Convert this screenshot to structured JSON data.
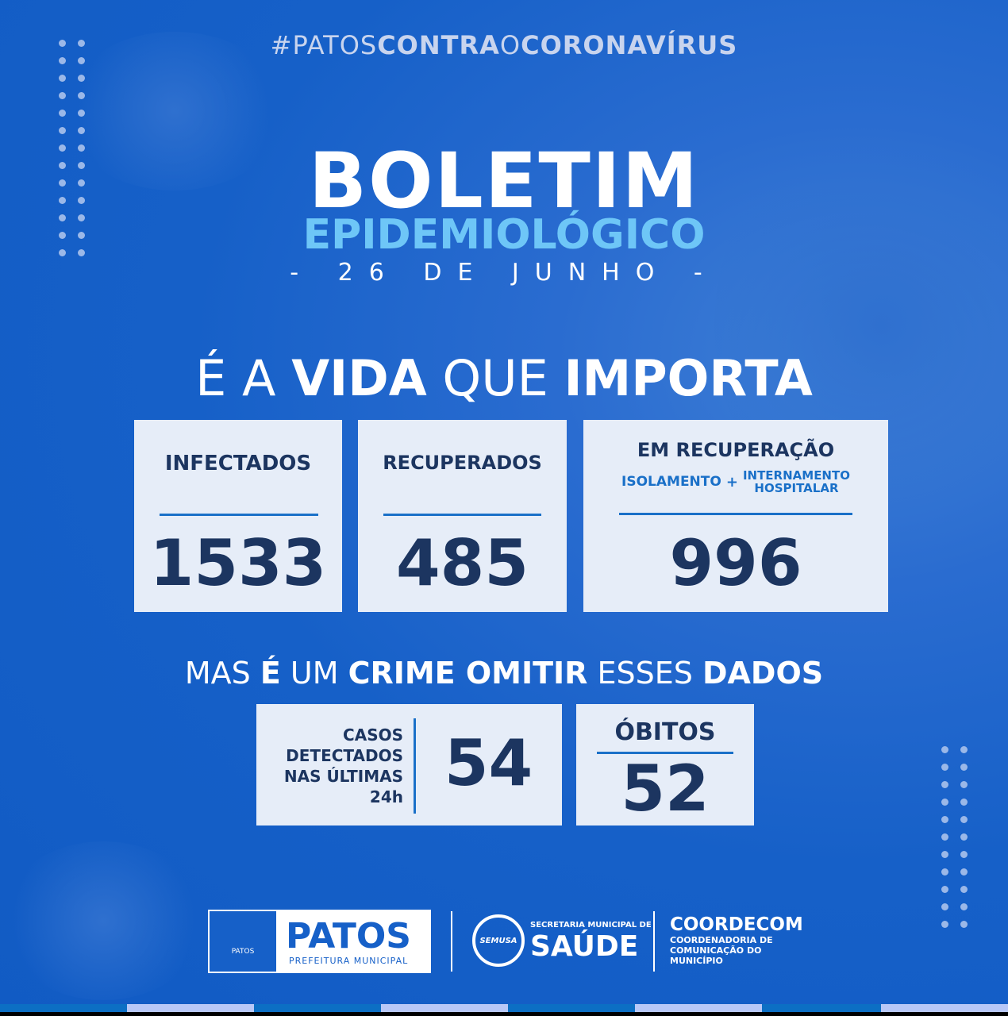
{
  "hashtag": {
    "prefix": "#PATOS",
    "bold1": "CONTRA",
    "mid": "O",
    "bold2": "CORONAVÍRUS"
  },
  "title": "BOLETIM",
  "subtitle": "EPIDEMIOLÓGICO",
  "date": "- 26 DE JUNHO -",
  "slogan": {
    "p1": "É A ",
    "b1": "VIDA",
    "p2": " QUE ",
    "b2": "IMPORTA"
  },
  "stats": {
    "infectados": {
      "label": "INFECTADOS",
      "value": "1533"
    },
    "recuperados": {
      "label": "RECUPERADOS",
      "value": "485"
    },
    "em_recuperacao": {
      "label": "EM RECUPERAÇÃO",
      "sub1": "ISOLAMENTO",
      "plus": "+",
      "sub2a": "INTERNAMENTO",
      "sub2b": "HOSPITALAR",
      "value": "996"
    }
  },
  "slogan2": {
    "p1": "MAS ",
    "b1": "É",
    "p2": " UM ",
    "b2": "CRIME OMITIR",
    "p3": " ESSES ",
    "b3": "DADOS"
  },
  "casos24h": {
    "l1": "CASOS",
    "l2": "DETECTADOS",
    "l3": "NAS ÚLTIMAS",
    "l4": "24h",
    "value": "54"
  },
  "obitos": {
    "label": "ÓBITOS",
    "value": "52"
  },
  "footer": {
    "patos": {
      "name": "PATOS",
      "sub": "PREFEITURA MUNICIPAL",
      "crest": "PATOS"
    },
    "saude": {
      "top": "SECRETARIA MUNICIPAL DE",
      "name": "SAÚDE",
      "badge": "SEMUSA"
    },
    "coordecom": {
      "name": "COORDECOM",
      "l1": "COORDENADORIA DE",
      "l2": "COMUNICAÇÃO DO",
      "l3": "MUNICÍPIO"
    }
  },
  "colors": {
    "background": "#1660c8",
    "box": "#e6edf8",
    "dark_text": "#1c3560",
    "accent": "#1a70c8",
    "subtitle": "#6ec6f7"
  }
}
